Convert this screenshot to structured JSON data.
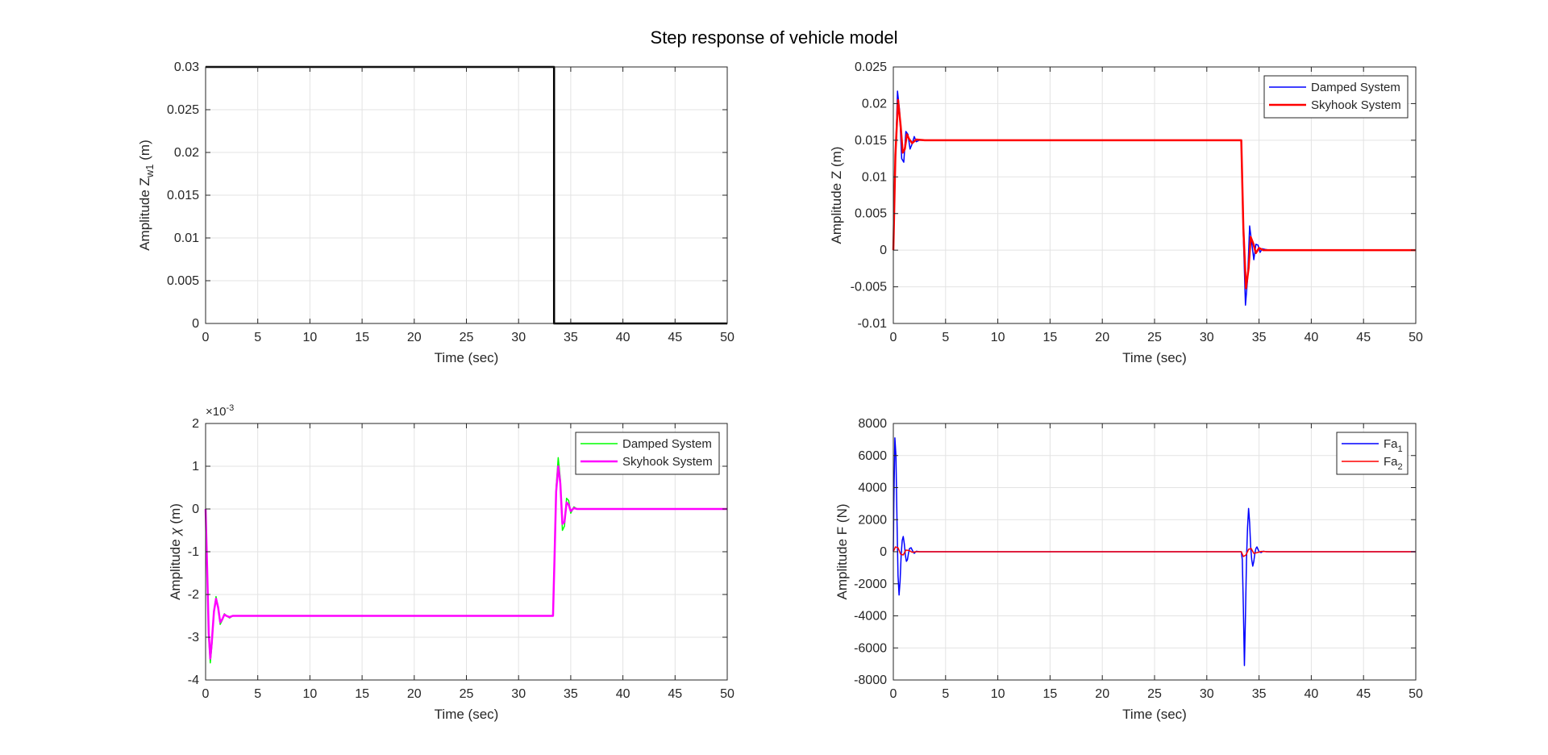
{
  "figure": {
    "title": "Step response of vehicle model"
  },
  "chart_data": [
    {
      "id": "p1",
      "type": "line",
      "xlabel": "Time (sec)",
      "ylabel": {
        "base": "Amplitude Z",
        "sub": "w1",
        "unit": " (m)"
      },
      "xlim": [
        0,
        50
      ],
      "ylim": [
        0,
        0.03
      ],
      "xticks": [
        0,
        5,
        10,
        15,
        20,
        25,
        30,
        35,
        40,
        45,
        50
      ],
      "yticks": [
        0,
        0.005,
        0.01,
        0.015,
        0.02,
        0.025,
        0.03
      ],
      "ytick_labels": [
        "0",
        "0.005",
        "0.01",
        "0.015",
        "0.02",
        "0.025",
        "0.03"
      ],
      "grid": true,
      "legend": null,
      "series": [
        {
          "color": "#000000",
          "width": 2.5,
          "x": [
            0,
            33.4,
            33.4,
            50
          ],
          "y": [
            0.03,
            0.03,
            0,
            0
          ]
        }
      ]
    },
    {
      "id": "p2",
      "type": "line",
      "xlabel": "Time (sec)",
      "ylabel": {
        "base": "Amplitude Z (m)"
      },
      "xlim": [
        0,
        50
      ],
      "ylim": [
        -0.01,
        0.025
      ],
      "xticks": [
        0,
        5,
        10,
        15,
        20,
        25,
        30,
        35,
        40,
        45,
        50
      ],
      "yticks": [
        -0.01,
        -0.005,
        0,
        0.005,
        0.01,
        0.015,
        0.02,
        0.025
      ],
      "ytick_labels": [
        "-0.01",
        "-0.005",
        "0",
        "0.005",
        "0.01",
        "0.015",
        "0.02",
        "0.025"
      ],
      "grid": true,
      "legend": "top-right",
      "series": [
        {
          "name": "Damped System",
          "color": "#0000ff",
          "width": 1.5,
          "x": [
            0,
            0.2,
            0.4,
            0.6,
            0.8,
            1.0,
            1.2,
            1.4,
            1.6,
            1.8,
            2.0,
            2.2,
            2.5,
            3.0,
            33.3,
            33.5,
            33.7,
            33.9,
            34.1,
            34.3,
            34.5,
            34.7,
            34.9,
            35.1,
            35.3,
            35.6,
            36.0,
            50
          ],
          "y": [
            0,
            0.012,
            0.0217,
            0.019,
            0.0125,
            0.012,
            0.0162,
            0.0158,
            0.0138,
            0.0145,
            0.0155,
            0.0148,
            0.015,
            0.015,
            0.015,
            0.002,
            -0.0075,
            -0.004,
            0.0033,
            0.001,
            -0.0013,
            0.0008,
            0.0007,
            -0.0003,
            0.0002,
            0.0001,
            0,
            0
          ]
        },
        {
          "name": "Skyhook System",
          "color": "#ff0000",
          "width": 2.5,
          "x": [
            0,
            0.2,
            0.45,
            0.7,
            0.9,
            1.1,
            1.3,
            1.5,
            1.8,
            2.2,
            3.0,
            33.3,
            33.5,
            33.75,
            34.0,
            34.2,
            34.45,
            34.7,
            35.0,
            35.4,
            36.0,
            50
          ],
          "y": [
            0,
            0.013,
            0.0205,
            0.017,
            0.0133,
            0.0138,
            0.0158,
            0.0152,
            0.0146,
            0.0151,
            0.015,
            0.015,
            0.003,
            -0.0052,
            -0.0025,
            0.0018,
            0.0009,
            -0.0004,
            0.0003,
            0,
            0,
            0
          ]
        }
      ]
    },
    {
      "id": "p3",
      "type": "line",
      "xlabel": "Time (sec)",
      "ylabel": {
        "base": "Amplitude ",
        "greek": "χ",
        "unit": " (m)"
      },
      "exponent": {
        "base": "×10",
        "power": "-3"
      },
      "xlim": [
        0,
        50
      ],
      "ylim": [
        -4,
        2
      ],
      "xticks": [
        0,
        5,
        10,
        15,
        20,
        25,
        30,
        35,
        40,
        45,
        50
      ],
      "yticks": [
        -4,
        -3,
        -2,
        -1,
        0,
        1,
        2
      ],
      "ytick_labels": [
        "-4",
        "-3",
        "-2",
        "-1",
        "0",
        "1",
        "2"
      ],
      "grid": true,
      "legend": "top-right",
      "series": [
        {
          "name": "Damped System",
          "color": "#00ff00",
          "width": 1.5,
          "x": [
            0,
            0.15,
            0.3,
            0.45,
            0.6,
            0.8,
            1.0,
            1.2,
            1.4,
            1.6,
            1.8,
            2.0,
            2.3,
            2.6,
            3.0,
            33.3,
            33.45,
            33.6,
            33.8,
            34.0,
            34.2,
            34.4,
            34.6,
            34.8,
            35.0,
            35.3,
            35.6,
            36.0,
            50
          ],
          "y": [
            0,
            -1.5,
            -3.0,
            -3.6,
            -3.2,
            -2.4,
            -2.05,
            -2.3,
            -2.7,
            -2.6,
            -2.45,
            -2.5,
            -2.55,
            -2.5,
            -2.5,
            -2.5,
            -1.0,
            0.5,
            1.2,
            0.7,
            -0.5,
            -0.4,
            0.25,
            0.2,
            -0.1,
            0.05,
            0,
            0,
            0
          ]
        },
        {
          "name": "Skyhook System",
          "color": "#ff00ff",
          "width": 2.5,
          "x": [
            0,
            0.15,
            0.3,
            0.45,
            0.6,
            0.8,
            1.0,
            1.2,
            1.4,
            1.6,
            1.8,
            2.0,
            2.3,
            2.6,
            3.0,
            33.3,
            33.45,
            33.6,
            33.8,
            34.0,
            34.2,
            34.4,
            34.6,
            34.8,
            35.0,
            35.3,
            35.6,
            36.0,
            50
          ],
          "y": [
            0,
            -1.4,
            -2.9,
            -3.5,
            -3.1,
            -2.4,
            -2.1,
            -2.3,
            -2.65,
            -2.58,
            -2.47,
            -2.5,
            -2.53,
            -2.5,
            -2.5,
            -2.5,
            -1.1,
            0.4,
            1.0,
            0.6,
            -0.35,
            -0.3,
            0.15,
            0.1,
            -0.05,
            0.02,
            0,
            0,
            0
          ]
        }
      ]
    },
    {
      "id": "p4",
      "type": "line",
      "xlabel": "Time (sec)",
      "ylabel": {
        "base": "Amplitude F (N)"
      },
      "xlim": [
        0,
        50
      ],
      "ylim": [
        -8000,
        8000
      ],
      "xticks": [
        0,
        5,
        10,
        15,
        20,
        25,
        30,
        35,
        40,
        45,
        50
      ],
      "yticks": [
        -8000,
        -6000,
        -4000,
        -2000,
        0,
        2000,
        4000,
        6000,
        8000
      ],
      "ytick_labels": [
        "-8000",
        "-6000",
        "-4000",
        "-2000",
        "0",
        "2000",
        "4000",
        "6000",
        "8000"
      ],
      "grid": true,
      "legend": "top-right",
      "series": [
        {
          "name": {
            "base": "Fa",
            "sub": "1"
          },
          "color": "#0000ff",
          "width": 1.5,
          "x": [
            0,
            0.05,
            0.15,
            0.25,
            0.35,
            0.45,
            0.55,
            0.65,
            0.75,
            0.85,
            0.95,
            1.05,
            1.15,
            1.25,
            1.35,
            1.45,
            1.55,
            1.7,
            1.85,
            2.0,
            2.2,
            2.5,
            3.0,
            33.3,
            33.4,
            33.5,
            33.6,
            33.7,
            33.8,
            33.9,
            34.0,
            34.1,
            34.2,
            34.3,
            34.4,
            34.5,
            34.6,
            34.7,
            34.8,
            34.9,
            35.0,
            35.2,
            35.4,
            35.7,
            36.0,
            50
          ],
          "y": [
            0,
            3000,
            7100,
            6000,
            2000,
            -1500,
            -2700,
            -1800,
            -200,
            700,
            950,
            500,
            -200,
            -600,
            -500,
            -100,
            200,
            250,
            50,
            -100,
            30,
            0,
            0,
            0,
            -500,
            -3500,
            -7100,
            -4000,
            -500,
            1500,
            2700,
            1800,
            300,
            -500,
            -900,
            -600,
            -100,
            200,
            300,
            150,
            0,
            -50,
            30,
            0,
            0,
            0
          ]
        },
        {
          "name": {
            "base": "Fa",
            "sub": "2"
          },
          "color": "#ff0000",
          "width": 1.5,
          "x": [
            0,
            0.2,
            0.45,
            0.7,
            0.95,
            1.2,
            1.5,
            1.8,
            2.2,
            3.0,
            33.3,
            33.5,
            33.75,
            34.0,
            34.25,
            34.5,
            34.8,
            35.2,
            36.0,
            50
          ],
          "y": [
            0,
            300,
            250,
            -150,
            -200,
            100,
            80,
            -30,
            0,
            0,
            0,
            -300,
            -200,
            150,
            200,
            -100,
            -60,
            20,
            0,
            0
          ]
        }
      ]
    }
  ]
}
